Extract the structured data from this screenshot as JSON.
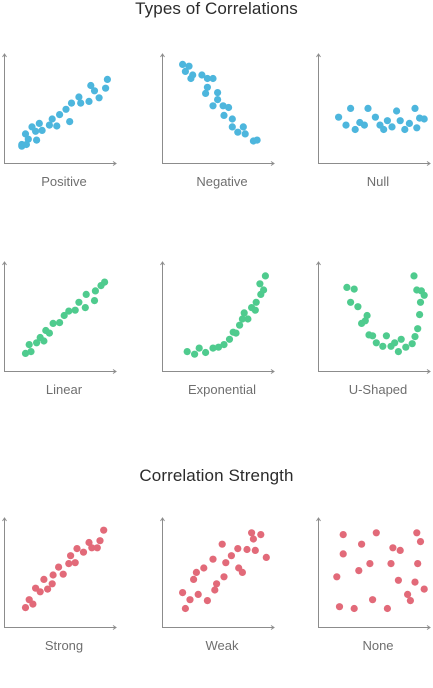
{
  "sections": [
    {
      "title": "Types of Correlations",
      "panels": [
        {
          "label": "Positive",
          "color": "#4db6dd",
          "points": [
            [
              2,
              2
            ],
            [
              2,
              4
            ],
            [
              9,
              10
            ],
            [
              7,
              4
            ],
            [
              18,
              9
            ],
            [
              17,
              19
            ],
            [
              13,
              24
            ],
            [
              6,
              16
            ],
            [
              21,
              28
            ],
            [
              24,
              20
            ],
            [
              32,
              26
            ],
            [
              35,
              33
            ],
            [
              40,
              25
            ],
            [
              43,
              38
            ],
            [
              54,
              30
            ],
            [
              50,
              44
            ],
            [
              56,
              51
            ],
            [
              66,
              51
            ],
            [
              64,
              58
            ],
            [
              75,
              53
            ],
            [
              77,
              71
            ],
            [
              81,
              65
            ],
            [
              86,
              57
            ],
            [
              93,
              68
            ],
            [
              95,
              78
            ]
          ]
        },
        {
          "label": "Negative",
          "color": "#4db6dd",
          "points": [
            [
              5,
              95
            ],
            [
              12,
              93
            ],
            [
              8,
              87
            ],
            [
              16,
              83
            ],
            [
              14,
              79
            ],
            [
              26,
              83
            ],
            [
              32,
              79
            ],
            [
              38,
              79
            ],
            [
              32,
              69
            ],
            [
              30,
              62
            ],
            [
              43,
              63
            ],
            [
              43,
              55
            ],
            [
              38,
              48
            ],
            [
              49,
              48
            ],
            [
              55,
              46
            ],
            [
              50,
              37
            ],
            [
              59,
              33
            ],
            [
              59,
              24
            ],
            [
              71,
              24
            ],
            [
              65,
              18
            ],
            [
              73,
              16
            ],
            [
              82,
              8
            ],
            [
              86,
              9
            ]
          ]
        },
        {
          "label": "Null",
          "color": "#4db6dd",
          "points": [
            [
              5,
              35
            ],
            [
              13,
              26
            ],
            [
              18,
              45
            ],
            [
              23,
              21
            ],
            [
              28,
              29
            ],
            [
              33,
              26
            ],
            [
              37,
              45
            ],
            [
              45,
              35
            ],
            [
              50,
              26
            ],
            [
              54,
              21
            ],
            [
              58,
              31
            ],
            [
              63,
              24
            ],
            [
              68,
              42
            ],
            [
              72,
              31
            ],
            [
              77,
              21
            ],
            [
              82,
              28
            ],
            [
              88,
              45
            ],
            [
              90,
              23
            ],
            [
              93,
              34
            ],
            [
              98,
              33
            ]
          ]
        }
      ]
    },
    {
      "title": "",
      "panels": [
        {
          "label": "Linear",
          "color": "#4fcb8e",
          "points": [
            [
              6,
              3
            ],
            [
              10,
              13
            ],
            [
              12,
              5
            ],
            [
              18,
              15
            ],
            [
              22,
              21
            ],
            [
              26,
              17
            ],
            [
              28,
              29
            ],
            [
              32,
              26
            ],
            [
              36,
              37
            ],
            [
              43,
              38
            ],
            [
              48,
              46
            ],
            [
              53,
              51
            ],
            [
              60,
              52
            ],
            [
              64,
              61
            ],
            [
              71,
              55
            ],
            [
              72,
              70
            ],
            [
              81,
              63
            ],
            [
              82,
              74
            ],
            [
              88,
              80
            ],
            [
              92,
              84
            ]
          ]
        },
        {
          "label": "Exponential",
          "color": "#4fcb8e",
          "points": [
            [
              10,
              5
            ],
            [
              18,
              2
            ],
            [
              23,
              9
            ],
            [
              30,
              4
            ],
            [
              38,
              9
            ],
            [
              44,
              10
            ],
            [
              50,
              13
            ],
            [
              56,
              19
            ],
            [
              60,
              27
            ],
            [
              63,
              26
            ],
            [
              67,
              35
            ],
            [
              70,
              42
            ],
            [
              72,
              49
            ],
            [
              76,
              42
            ],
            [
              80,
              55
            ],
            [
              84,
              52
            ],
            [
              85,
              61
            ],
            [
              90,
              70
            ],
            [
              89,
              82
            ],
            [
              93,
              75
            ],
            [
              95,
              91
            ]
          ]
        },
        {
          "label": "U-Shaped",
          "color": "#4fcb8e",
          "points": [
            [
              14,
              78
            ],
            [
              18,
              61
            ],
            [
              22,
              76
            ],
            [
              26,
              56
            ],
            [
              30,
              37
            ],
            [
              34,
              40
            ],
            [
              36,
              46
            ],
            [
              38,
              24
            ],
            [
              42,
              23
            ],
            [
              46,
              15
            ],
            [
              53,
              11
            ],
            [
              57,
              23
            ],
            [
              62,
              11
            ],
            [
              66,
              15
            ],
            [
              70,
              5
            ],
            [
              73,
              19
            ],
            [
              78,
              10
            ],
            [
              85,
              14
            ],
            [
              88,
              22
            ],
            [
              91,
              31
            ],
            [
              93,
              47
            ],
            [
              94,
              61
            ],
            [
              98,
              69
            ],
            [
              95,
              74
            ],
            [
              90,
              75
            ],
            [
              87,
              91
            ]
          ]
        }
      ]
    },
    {
      "title": "Correlation Strength",
      "panels": [
        {
          "label": "Strong",
          "color": "#e26a79",
          "points": [
            [
              6,
              5
            ],
            [
              10,
              14
            ],
            [
              14,
              9
            ],
            [
              17,
              27
            ],
            [
              22,
              23
            ],
            [
              26,
              37
            ],
            [
              30,
              26
            ],
            [
              35,
              32
            ],
            [
              36,
              42
            ],
            [
              42,
              51
            ],
            [
              47,
              43
            ],
            [
              53,
              55
            ],
            [
              55,
              64
            ],
            [
              60,
              56
            ],
            [
              62,
              72
            ],
            [
              69,
              68
            ],
            [
              75,
              79
            ],
            [
              78,
              73
            ],
            [
              84,
              73
            ],
            [
              87,
              81
            ],
            [
              91,
              93
            ]
          ]
        },
        {
          "label": "Weak",
          "color": "#e26a79",
          "points": [
            [
              5,
              22
            ],
            [
              8,
              4
            ],
            [
              13,
              14
            ],
            [
              17,
              37
            ],
            [
              20,
              45
            ],
            [
              22,
              20
            ],
            [
              28,
              50
            ],
            [
              32,
              13
            ],
            [
              38,
              60
            ],
            [
              40,
              25
            ],
            [
              42,
              32
            ],
            [
              48,
              77
            ],
            [
              50,
              40
            ],
            [
              52,
              56
            ],
            [
              58,
              64
            ],
            [
              65,
              72
            ],
            [
              66,
              50
            ],
            [
              70,
              45
            ],
            [
              75,
              71
            ],
            [
              80,
              90
            ],
            [
              82,
              83
            ],
            [
              84,
              70
            ],
            [
              90,
              88
            ],
            [
              96,
              62
            ]
          ]
        },
        {
          "label": "None",
          "color": "#e26a79",
          "points": [
            [
              3,
              40
            ],
            [
              6,
              6
            ],
            [
              10,
              88
            ],
            [
              10,
              66
            ],
            [
              22,
              4
            ],
            [
              27,
              47
            ],
            [
              30,
              77
            ],
            [
              39,
              55
            ],
            [
              42,
              14
            ],
            [
              46,
              90
            ],
            [
              58,
              4
            ],
            [
              62,
              55
            ],
            [
              64,
              73
            ],
            [
              70,
              36
            ],
            [
              72,
              70
            ],
            [
              80,
              20
            ],
            [
              83,
              13
            ],
            [
              88,
              34
            ],
            [
              90,
              90
            ],
            [
              91,
              55
            ],
            [
              94,
              80
            ],
            [
              98,
              26
            ]
          ]
        }
      ]
    }
  ]
}
